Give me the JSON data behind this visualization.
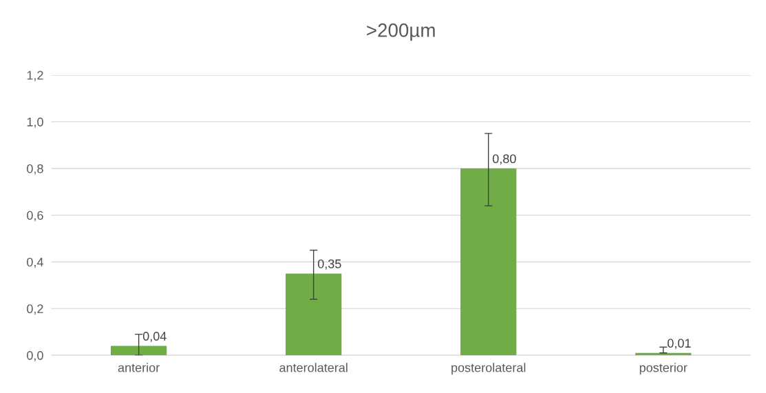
{
  "chart_data": {
    "type": "bar",
    "title": ">200µm",
    "categories": [
      "anterior",
      "anterolateral",
      "posterolateral",
      "posterior"
    ],
    "values": [
      0.04,
      0.35,
      0.8,
      0.01
    ],
    "errors": [
      [
        0,
        0.09
      ],
      [
        0.24,
        0.45
      ],
      [
        0.64,
        0.95
      ],
      [
        0.01,
        0.035
      ]
    ],
    "value_labels": [
      "0,04",
      "0,35",
      "0,80",
      "0,01"
    ],
    "color": "#70ad47",
    "ylim": [
      0,
      1.2
    ],
    "yticks": [
      {
        "value": 0,
        "label": "0,0"
      },
      {
        "value": 0.2,
        "label": "0,2"
      },
      {
        "value": 0.4,
        "label": "0,4"
      },
      {
        "value": 0.6,
        "label": "0,6"
      },
      {
        "value": 0.8,
        "label": "0,8"
      },
      {
        "value": 1.0,
        "label": "1,0"
      },
      {
        "value": 1.2,
        "label": "1,2"
      }
    ],
    "grid": "y",
    "legend": false
  }
}
